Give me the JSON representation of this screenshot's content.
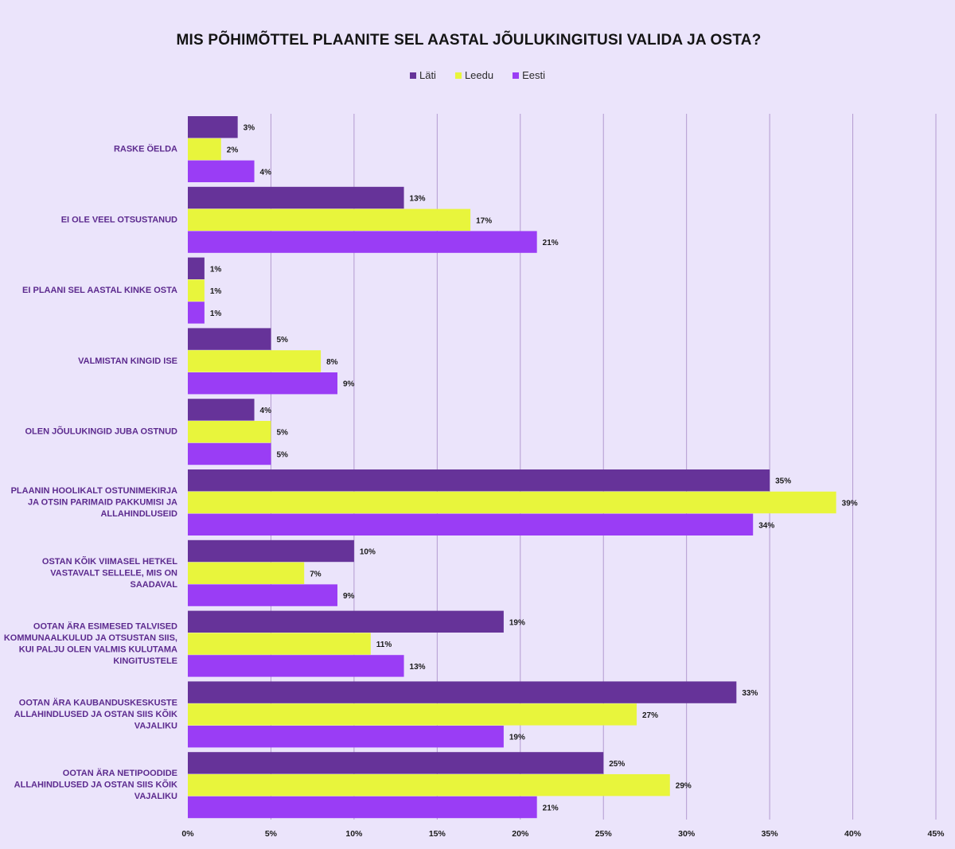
{
  "chart_data": {
    "type": "bar",
    "orientation": "horizontal",
    "title": "MIS PÕHIMÕTTEL PLAANITE SEL AASTAL JÕULUKINGITUSI VALIDA JA OSTA?",
    "xlabel": "",
    "ylabel": "",
    "xlim": [
      0,
      45
    ],
    "x_ticks": [
      "0%",
      "5%",
      "10%",
      "15%",
      "20%",
      "25%",
      "30%",
      "35%",
      "40%",
      "45%"
    ],
    "grid": "vertical",
    "legend_position": "top-center",
    "categories": [
      "RASKE ÖELDA",
      "EI OLE VEEL OTSUSTANUD",
      "EI PLAANI SEL AASTAL KINKE OSTA",
      "VALMISTAN KINGID ISE",
      "OLEN JÕULUKINGID JUBA OSTNUD",
      "PLAANIN HOOLIKALT OSTUNIMEKIRJA JA OTSIN PARIMAID PAKKUMISI JA ALLAHINDLUSEID",
      "OSTAN KÕIK VIIMASEL HETKEL VASTAVALT SELLELE, MIS ON SAADAVAL",
      "OOTAN ÄRA ESIMESED TALVISED KOMMUNAALKULUD JA OTSUSTAN SIIS, KUI PALJU OLEN VALMIS KULUTAMA KINGITUSTELE",
      "OOTAN ÄRA KAUBANDUSKESKUSTE ALLAHINDLUSED JA OSTAN SIIS KÕIK VAJALIKU",
      "OOTAN ÄRA NETIPOODIDE ALLAHINDLUSED JA OSTAN SIIS KÕIK VAJALIKU"
    ],
    "category_lines": [
      [
        "RASKE ÖELDA"
      ],
      [
        "EI OLE VEEL OTSUSTANUD"
      ],
      [
        "EI PLAANI SEL AASTAL KINKE OSTA"
      ],
      [
        "VALMISTAN KINGID ISE"
      ],
      [
        "OLEN JÕULUKINGID JUBA OSTNUD"
      ],
      [
        "PLAANIN HOOLIKALT OSTUNIMEKIRJA",
        "JA OTSIN PARIMAID PAKKUMISI JA",
        "ALLAHINDLUSEID"
      ],
      [
        "OSTAN KÕIK VIIMASEL HETKEL",
        "VASTAVALT SELLELE, MIS ON",
        "SAADAVAL"
      ],
      [
        "OOTAN ÄRA ESIMESED TALVISED",
        "KOMMUNAALKULUD JA OTSUSTAN SIIS,",
        "KUI PALJU OLEN VALMIS KULUTAMA",
        "KINGITUSTELE"
      ],
      [
        "OOTAN ÄRA KAUBANDUSKESKUSTE",
        "ALLAHINDLUSED JA OSTAN SIIS KÕIK",
        "VAJALIKU"
      ],
      [
        "OOTAN ÄRA NETIPOODIDE",
        "ALLAHINDLUSED JA OSTAN SIIS KÕIK",
        "VAJALIKU"
      ]
    ],
    "value_suffix": "%",
    "series": [
      {
        "name": "Läti",
        "color": "#663399",
        "values": [
          3,
          13,
          1,
          5,
          4,
          35,
          10,
          19,
          33,
          25
        ]
      },
      {
        "name": "Leedu",
        "color": "#e8f53c",
        "values": [
          2,
          17,
          1,
          8,
          5,
          39,
          7,
          11,
          27,
          29
        ]
      },
      {
        "name": "Eesti",
        "color": "#9a3df5",
        "values": [
          4,
          21,
          1,
          9,
          5,
          34,
          9,
          13,
          19,
          21
        ]
      }
    ]
  },
  "colors": {
    "background": "#ebe4fb",
    "gridline": "#b39ad0",
    "category_text": "#5c2a8e",
    "value_text": "#1a1a1a"
  }
}
